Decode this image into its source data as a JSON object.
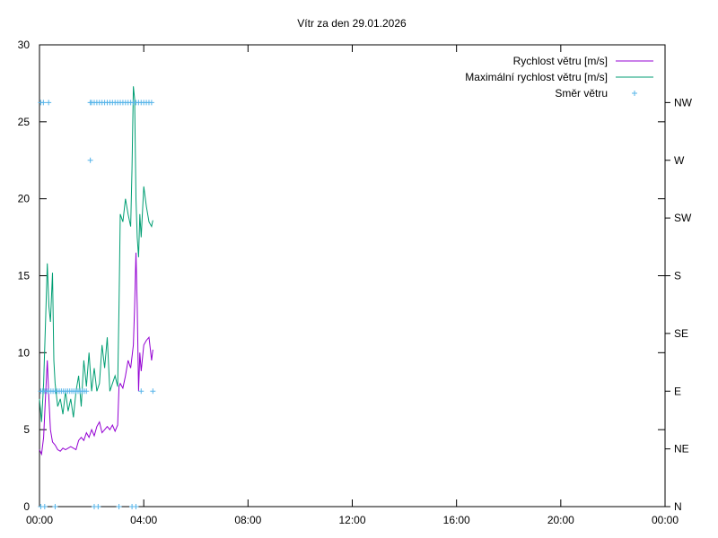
{
  "chart_data": {
    "type": "line",
    "title": "Vítr za den 29.01.2026",
    "xlim": [
      0,
      24
    ],
    "ylim": [
      0,
      30
    ],
    "x_ticks": [
      {
        "v": 0,
        "label": "00:00"
      },
      {
        "v": 4,
        "label": "04:00"
      },
      {
        "v": 8,
        "label": "08:00"
      },
      {
        "v": 12,
        "label": "12:00"
      },
      {
        "v": 16,
        "label": "16:00"
      },
      {
        "v": 20,
        "label": "20:00"
      },
      {
        "v": 24,
        "label": "00:00"
      }
    ],
    "y_ticks": [
      0,
      5,
      10,
      15,
      20,
      25,
      30
    ],
    "y2_ticks": [
      {
        "v": 0,
        "label": "N"
      },
      {
        "v": 3.75,
        "label": "NE"
      },
      {
        "v": 7.5,
        "label": "E"
      },
      {
        "v": 11.25,
        "label": "SE"
      },
      {
        "v": 15,
        "label": "S"
      },
      {
        "v": 18.75,
        "label": "SW"
      },
      {
        "v": 22.5,
        "label": "W"
      },
      {
        "v": 26.25,
        "label": "NW"
      }
    ],
    "legend_position": "top-right",
    "series": [
      {
        "name": "Rychlost větru [m/s]",
        "style": "line",
        "color": "#9400d3",
        "x": [
          0,
          0.08,
          0.16,
          0.24,
          0.3,
          0.36,
          0.42,
          0.5,
          0.6,
          0.7,
          0.8,
          0.9,
          1.0,
          1.1,
          1.2,
          1.3,
          1.4,
          1.5,
          1.6,
          1.7,
          1.8,
          1.9,
          2.0,
          2.1,
          2.2,
          2.3,
          2.4,
          2.5,
          2.6,
          2.7,
          2.8,
          2.9,
          3.0,
          3.05,
          3.1,
          3.2,
          3.3,
          3.4,
          3.5,
          3.6,
          3.65,
          3.7,
          3.75,
          3.8,
          3.85,
          3.9,
          4.0,
          4.1,
          4.2,
          4.3,
          4.35
        ],
        "y": [
          3.7,
          3.4,
          4.5,
          7.5,
          9.5,
          7.0,
          5.0,
          4.2,
          4.0,
          3.7,
          3.6,
          3.8,
          3.7,
          3.8,
          3.9,
          3.8,
          3.7,
          4.3,
          4.5,
          4.3,
          4.8,
          4.5,
          5.0,
          4.6,
          5.2,
          5.5,
          4.8,
          5.0,
          5.2,
          5.0,
          5.3,
          4.9,
          5.3,
          7.8,
          8.0,
          7.7,
          8.5,
          9.5,
          9.0,
          10.5,
          13.0,
          16.5,
          13.0,
          7.5,
          10.0,
          8.8,
          10.5,
          10.8,
          11.0,
          9.5,
          10.2
        ]
      },
      {
        "name": "Maximální rychlost větru [m/s]",
        "style": "line",
        "color": "#009e73",
        "x": [
          0,
          0.08,
          0.16,
          0.24,
          0.3,
          0.36,
          0.42,
          0.5,
          0.55,
          0.6,
          0.7,
          0.8,
          0.9,
          1.0,
          1.1,
          1.2,
          1.3,
          1.4,
          1.5,
          1.6,
          1.7,
          1.8,
          1.9,
          2.0,
          2.1,
          2.2,
          2.3,
          2.4,
          2.5,
          2.6,
          2.7,
          2.8,
          2.9,
          3.0,
          3.05,
          3.1,
          3.2,
          3.3,
          3.4,
          3.5,
          3.55,
          3.6,
          3.65,
          3.7,
          3.75,
          3.8,
          3.85,
          3.9,
          4.0,
          4.1,
          4.2,
          4.3,
          4.35
        ],
        "y": [
          7.0,
          5.5,
          8.0,
          12.5,
          15.8,
          13.0,
          12.0,
          15.2,
          9.5,
          8.0,
          6.5,
          7.0,
          6.0,
          7.5,
          6.2,
          7.0,
          5.8,
          7.5,
          8.5,
          6.5,
          9.5,
          7.8,
          10.0,
          7.5,
          9.0,
          7.5,
          8.0,
          10.5,
          9.0,
          11.0,
          7.5,
          8.0,
          8.5,
          7.8,
          13.0,
          19.0,
          18.5,
          20.0,
          19.0,
          18.2,
          22.0,
          27.3,
          26.5,
          20.0,
          17.5,
          16.2,
          19.0,
          17.5,
          20.8,
          19.5,
          18.5,
          18.2,
          18.6
        ]
      },
      {
        "name": "Směr větru",
        "style": "points",
        "color": "#56b4e9",
        "x": [
          0.05,
          0.15,
          0.35,
          0.05,
          0.12,
          0.2,
          0.28,
          0.36,
          0.44,
          0.52,
          0.6,
          0.68,
          0.76,
          0.84,
          0.92,
          1.0,
          1.08,
          1.16,
          1.24,
          1.32,
          1.4,
          1.48,
          1.56,
          1.64,
          1.72,
          1.8,
          1.95,
          2.0,
          2.1,
          2.2,
          2.3,
          2.4,
          2.5,
          2.6,
          2.7,
          2.8,
          2.9,
          3.0,
          3.1,
          3.2,
          3.3,
          3.4,
          3.5,
          3.6,
          3.7,
          3.8,
          3.9,
          4.0,
          4.1,
          4.2,
          4.3,
          1.95,
          3.9,
          4.35,
          0.05,
          0.2,
          0.6,
          2.1,
          2.25,
          3.05,
          3.55,
          3.7
        ],
        "y": [
          26.25,
          26.25,
          26.25,
          7.5,
          7.5,
          7.5,
          7.5,
          7.5,
          7.5,
          7.5,
          7.5,
          7.5,
          7.5,
          7.5,
          7.5,
          7.5,
          7.5,
          7.5,
          7.5,
          7.5,
          7.5,
          7.5,
          7.5,
          7.5,
          7.5,
          7.5,
          26.25,
          26.25,
          26.25,
          26.25,
          26.25,
          26.25,
          26.25,
          26.25,
          26.25,
          26.25,
          26.25,
          26.25,
          26.25,
          26.25,
          26.25,
          26.25,
          26.25,
          26.25,
          26.25,
          26.25,
          26.25,
          26.25,
          26.25,
          26.25,
          26.25,
          22.5,
          7.5,
          7.5,
          0,
          0,
          0,
          0,
          0,
          0,
          0,
          0
        ]
      }
    ]
  }
}
